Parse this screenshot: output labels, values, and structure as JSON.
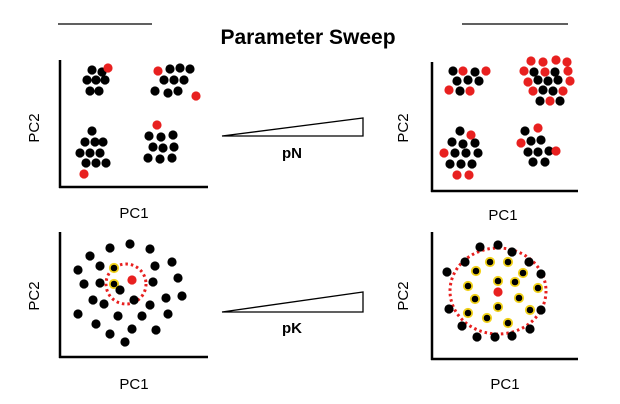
{
  "figure": {
    "title": "Parameter Sweep"
  },
  "colors": {
    "cell": "#000000",
    "doublet": "#e8201f",
    "highlight_ring": "#f2d21b",
    "neighborhood_circle": "#e8201f"
  },
  "panels": [
    {
      "id": "pn-low",
      "xlabel": "PC1",
      "ylabel": "PC2"
    },
    {
      "id": "pn-high",
      "xlabel": "PC1",
      "ylabel": "PC2"
    },
    {
      "id": "pk-low",
      "xlabel": "PC1",
      "ylabel": "PC2"
    },
    {
      "id": "pk-high",
      "xlabel": "PC1",
      "ylabel": "PC2"
    }
  ],
  "params": {
    "pn_label": "pN",
    "pk_label": "pK"
  }
}
